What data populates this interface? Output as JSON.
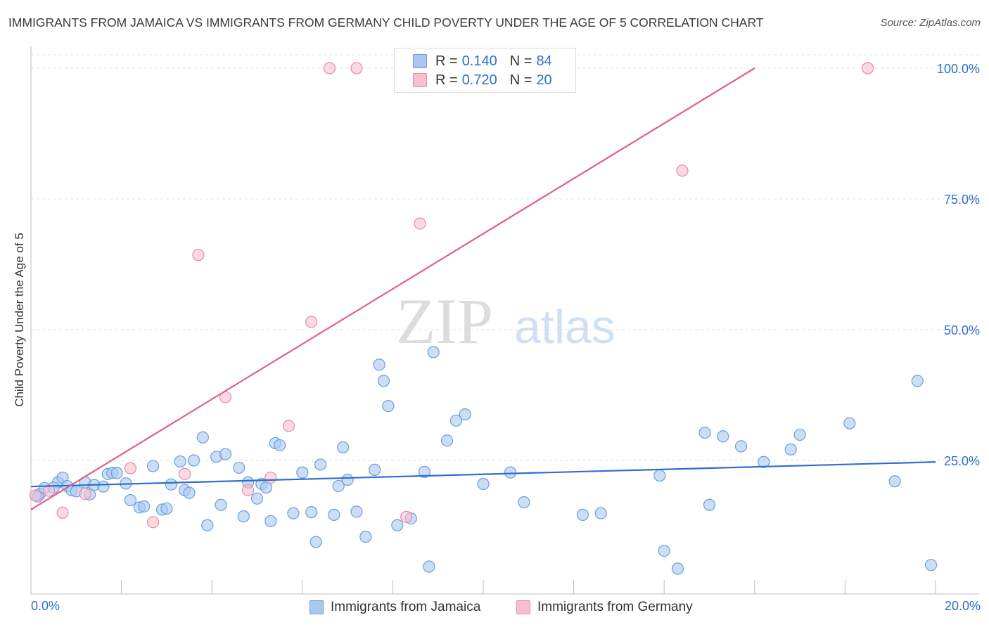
{
  "title": "IMMIGRANTS FROM JAMAICA VS IMMIGRANTS FROM GERMANY CHILD POVERTY UNDER THE AGE OF 5 CORRELATION CHART",
  "source": "Source: ZipAtlas.com",
  "watermark": {
    "zip": "ZIP",
    "atlas": "atlas"
  },
  "legend": {
    "r_label": "R =",
    "n_label": "N =",
    "jamaica": {
      "r": "0.140",
      "n": "84"
    },
    "germany": {
      "r": "0.720",
      "n": "20"
    }
  },
  "colors": {
    "jamaica_fill": "#a8c8f0",
    "jamaica_stroke": "#6a9fdc",
    "jamaica_line": "#2d6fcb",
    "germany_fill": "#f7bfd0",
    "germany_stroke": "#e88aa8",
    "germany_line": "#e0608a",
    "axis_label": "#2d6fcb"
  },
  "chart_data": {
    "type": "scatter",
    "title": "IMMIGRANTS FROM JAMAICA VS IMMIGRANTS FROM GERMANY CHILD POVERTY UNDER THE AGE OF 5 CORRELATION CHART",
    "xlabel": "",
    "ylabel": "Child Poverty Under the Age of 5",
    "xlim": [
      0,
      20
    ],
    "ylim": [
      0,
      102
    ],
    "x_tick_labels": [
      "0.0%",
      "20.0%"
    ],
    "y_ticks": [
      25,
      50,
      75,
      100
    ],
    "y_tick_labels": [
      "25.0%",
      "50.0%",
      "75.0%",
      "100.0%"
    ],
    "grid": "horizontal dashed",
    "legend_position": "top-center",
    "series": [
      {
        "name": "Immigrants from Jamaica",
        "r": 0.14,
        "n": 84,
        "trend": {
          "x": [
            0,
            20
          ],
          "y": [
            20.0,
            24.7
          ]
        },
        "points": [
          [
            0.2,
            18.6
          ],
          [
            0.3,
            19.7
          ],
          [
            0.6,
            20.8
          ],
          [
            0.7,
            21.7
          ],
          [
            0.8,
            20.1
          ],
          [
            0.9,
            19.3
          ],
          [
            1.0,
            19.1
          ],
          [
            1.2,
            20.8
          ],
          [
            1.3,
            18.5
          ],
          [
            1.4,
            20.3
          ],
          [
            1.6,
            20.0
          ],
          [
            1.7,
            22.4
          ],
          [
            1.8,
            22.6
          ],
          [
            1.9,
            22.6
          ],
          [
            2.1,
            20.6
          ],
          [
            2.2,
            17.4
          ],
          [
            2.4,
            16.0
          ],
          [
            2.5,
            16.2
          ],
          [
            2.7,
            23.9
          ],
          [
            2.9,
            15.6
          ],
          [
            3.0,
            15.8
          ],
          [
            3.1,
            20.4
          ],
          [
            3.3,
            24.8
          ],
          [
            3.4,
            19.3
          ],
          [
            3.5,
            18.8
          ],
          [
            3.6,
            25.0
          ],
          [
            3.8,
            29.4
          ],
          [
            3.9,
            12.6
          ],
          [
            4.1,
            25.7
          ],
          [
            4.2,
            16.5
          ],
          [
            4.3,
            26.2
          ],
          [
            4.6,
            23.6
          ],
          [
            4.7,
            14.3
          ],
          [
            4.8,
            20.8
          ],
          [
            5.0,
            17.7
          ],
          [
            5.1,
            20.5
          ],
          [
            5.2,
            19.8
          ],
          [
            5.3,
            13.4
          ],
          [
            5.4,
            28.3
          ],
          [
            5.5,
            27.9
          ],
          [
            5.8,
            14.9
          ],
          [
            6.0,
            22.7
          ],
          [
            6.2,
            15.1
          ],
          [
            6.3,
            9.4
          ],
          [
            6.4,
            24.2
          ],
          [
            6.7,
            14.6
          ],
          [
            6.8,
            20.1
          ],
          [
            6.9,
            27.5
          ],
          [
            7.0,
            21.3
          ],
          [
            7.2,
            15.2
          ],
          [
            7.4,
            10.4
          ],
          [
            7.6,
            23.2
          ],
          [
            7.7,
            43.3
          ],
          [
            7.8,
            40.2
          ],
          [
            7.9,
            35.4
          ],
          [
            8.1,
            12.6
          ],
          [
            8.4,
            13.9
          ],
          [
            8.7,
            22.8
          ],
          [
            8.8,
            4.7
          ],
          [
            8.9,
            45.7
          ],
          [
            9.2,
            28.8
          ],
          [
            9.4,
            32.6
          ],
          [
            9.6,
            33.8
          ],
          [
            10.0,
            20.5
          ],
          [
            10.6,
            22.7
          ],
          [
            10.9,
            17.0
          ],
          [
            12.2,
            14.6
          ],
          [
            12.6,
            14.9
          ],
          [
            13.9,
            22.1
          ],
          [
            14.0,
            7.7
          ],
          [
            14.3,
            4.3
          ],
          [
            14.9,
            30.3
          ],
          [
            15.0,
            16.5
          ],
          [
            15.3,
            29.6
          ],
          [
            15.7,
            27.7
          ],
          [
            16.2,
            24.7
          ],
          [
            16.8,
            27.1
          ],
          [
            17.0,
            29.9
          ],
          [
            18.1,
            32.1
          ],
          [
            19.1,
            21.0
          ],
          [
            19.6,
            40.2
          ],
          [
            19.9,
            5.0
          ],
          [
            0.15,
            18.1
          ],
          [
            0.5,
            19.8
          ]
        ]
      },
      {
        "name": "Immigrants from Germany",
        "r": 0.72,
        "n": 20,
        "trend": {
          "x": [
            0,
            16.0
          ],
          "y": [
            15.6,
            100.0
          ]
        },
        "points": [
          [
            0.1,
            18.3
          ],
          [
            0.4,
            19.2
          ],
          [
            0.7,
            15.0
          ],
          [
            1.2,
            18.6
          ],
          [
            2.2,
            23.5
          ],
          [
            2.7,
            13.2
          ],
          [
            3.4,
            22.4
          ],
          [
            3.7,
            64.3
          ],
          [
            4.3,
            37.1
          ],
          [
            4.8,
            19.3
          ],
          [
            5.3,
            21.7
          ],
          [
            5.7,
            31.6
          ],
          [
            6.2,
            51.5
          ],
          [
            6.6,
            100.0
          ],
          [
            7.2,
            100.0
          ],
          [
            8.3,
            14.2
          ],
          [
            8.6,
            70.3
          ],
          [
            10.4,
            100.0
          ],
          [
            14.4,
            80.4
          ],
          [
            18.5,
            100.0
          ]
        ]
      }
    ]
  }
}
